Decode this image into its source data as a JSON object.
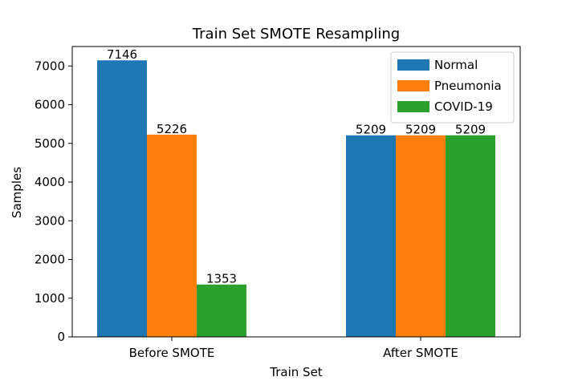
{
  "chart_data": {
    "type": "bar",
    "title": "Train Set SMOTE Resampling",
    "xlabel": "Train Set",
    "ylabel": "Samples",
    "categories": [
      "Before SMOTE",
      "After SMOTE"
    ],
    "series": [
      {
        "name": "Normal",
        "values": [
          7146,
          5209
        ],
        "color": "#1f77b4"
      },
      {
        "name": "Pneumonia",
        "values": [
          5226,
          5209
        ],
        "color": "#ff7f0e"
      },
      {
        "name": "COVID-19",
        "values": [
          1353,
          5209
        ],
        "color": "#2ca02c"
      }
    ],
    "ylim": [
      0,
      7503.3
    ],
    "yticks": [
      0,
      1000,
      2000,
      3000,
      4000,
      5000,
      6000,
      7000
    ],
    "grid": false,
    "legend_position": "top-right",
    "data_labels": true
  }
}
